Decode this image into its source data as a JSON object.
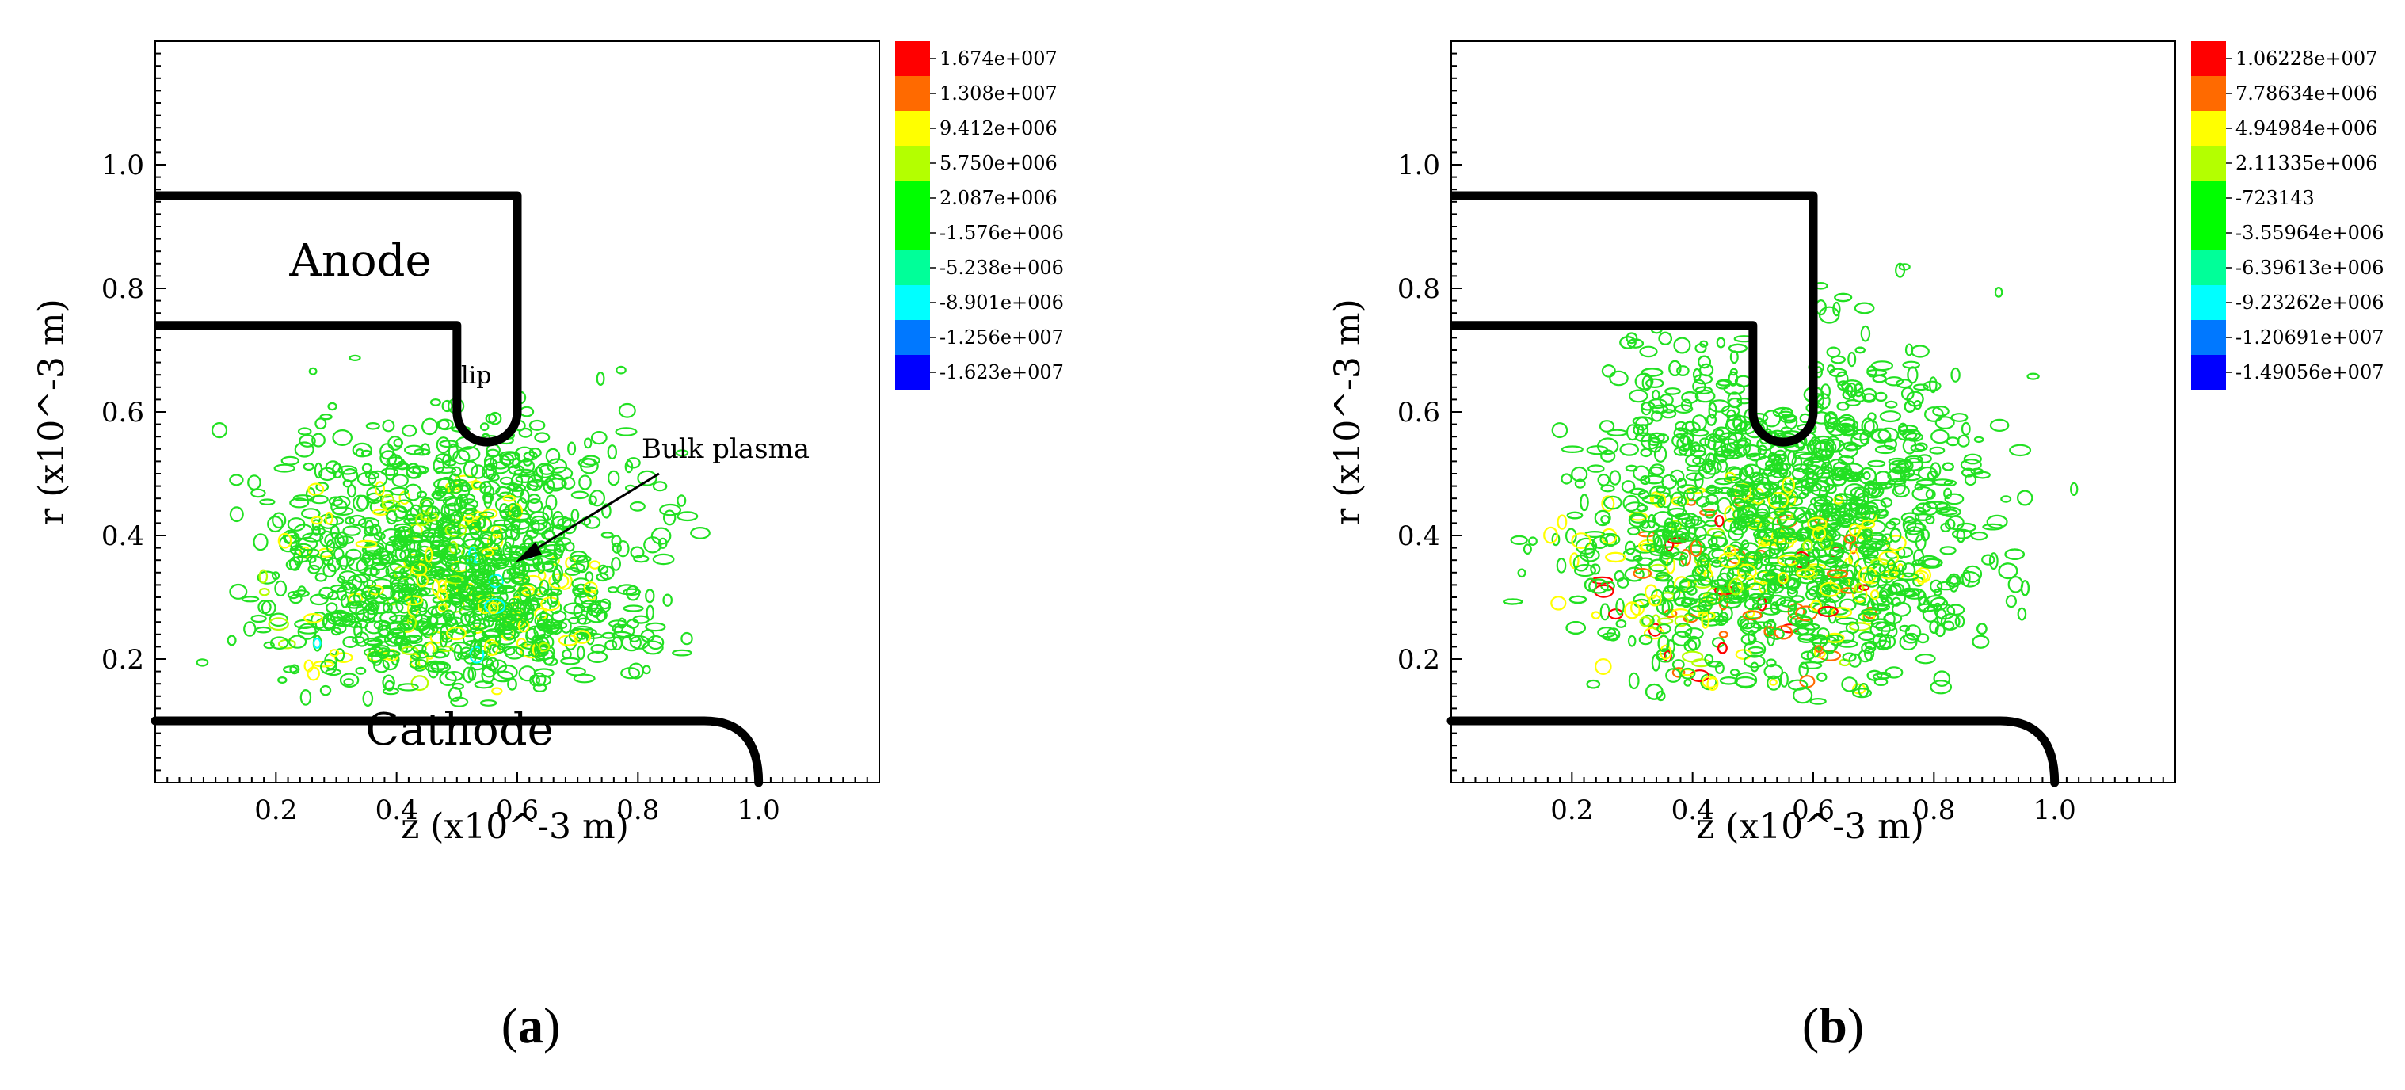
{
  "colors": {
    "frame": "#000000",
    "contour_ramp": [
      "#ff0000",
      "#ff6a00",
      "#ffff00",
      "#b4ff00",
      "#00ff00",
      "#00ff00",
      "#00ff99",
      "#00ffff",
      "#0078ff",
      "#0000ff"
    ]
  },
  "panels": [
    {
      "id": "a",
      "label_left": "(",
      "label_letter": "a",
      "label_right": ")",
      "annotations": {
        "anode": "Anode",
        "cathode": "Cathode",
        "lip": "lip",
        "bulk_plasma": "Bulk plasma"
      },
      "legend": [
        "1.674e+007",
        "1.308e+007",
        "9.412e+006",
        "5.750e+006",
        "2.087e+006",
        "-1.576e+006",
        "-5.238e+006",
        "-8.901e+006",
        "-1.256e+007",
        "-1.623e+007"
      ]
    },
    {
      "id": "b",
      "label_left": "(",
      "label_letter": "b",
      "label_right": ")",
      "annotations": {},
      "legend": [
        "1.06228e+007",
        "7.78634e+006",
        "4.94984e+006",
        "2.11335e+006",
        "-723143",
        "-3.55964e+006",
        "-6.39613e+006",
        "-9.23262e+006",
        "-1.20691e+007",
        "-1.49056e+007"
      ]
    }
  ],
  "chart_data": [
    {
      "type": "contour",
      "panel": "a",
      "xlabel": "z (x10^-3 m)",
      "ylabel": "r (x10^-3 m)",
      "xlim": [
        0,
        1.2
      ],
      "ylim": [
        0,
        1.2
      ],
      "xticks": [
        {
          "v": 0.2,
          "label": "0.2"
        },
        {
          "v": 0.4,
          "label": "0.4"
        },
        {
          "v": 0.6,
          "label": "0.6"
        },
        {
          "v": 0.8,
          "label": "0.8"
        },
        {
          "v": 1.0,
          "label": "1.0"
        }
      ],
      "yticks": [
        {
          "v": 0.2,
          "label": "0.2"
        },
        {
          "v": 0.4,
          "label": "0.4"
        },
        {
          "v": 0.6,
          "label": "0.6"
        },
        {
          "v": 0.8,
          "label": "0.8"
        },
        {
          "v": 1.0,
          "label": "1.0"
        }
      ],
      "levels": [
        16740000.0,
        13080000.0,
        9412000.0,
        5750000.0,
        2087000.0,
        -1576000.0,
        -5238000.0,
        -8901000.0,
        -12560000.0,
        -16230000.0
      ],
      "geometry": {
        "anode_top_r": 0.95,
        "anode_bottom_r": 0.74,
        "lip_z": [
          0.5,
          0.6
        ],
        "lip_tip_r": 0.6,
        "cathode_top_r": 0.1,
        "cathode_end_z": 1.0,
        "cathode_corner_radius": 0.09
      },
      "plasma_region": {
        "z_center": 0.42,
        "r_center": 0.3,
        "z_extent": [
          0.05,
          0.95
        ],
        "r_extent": [
          0.12,
          0.72
        ]
      },
      "grid": false,
      "legend_placement": "right"
    },
    {
      "type": "contour",
      "panel": "b",
      "xlabel": "z (x10^-3 m)",
      "ylabel": "r (x10^-3 m)",
      "xlim": [
        0,
        1.2
      ],
      "ylim": [
        0,
        1.2
      ],
      "xticks": [
        {
          "v": 0.2,
          "label": "0.2"
        },
        {
          "v": 0.4,
          "label": "0.4"
        },
        {
          "v": 0.6,
          "label": "0.6"
        },
        {
          "v": 0.8,
          "label": "0.8"
        },
        {
          "v": 1.0,
          "label": "1.0"
        }
      ],
      "yticks": [
        {
          "v": 0.2,
          "label": "0.2"
        },
        {
          "v": 0.4,
          "label": "0.4"
        },
        {
          "v": 0.6,
          "label": "0.6"
        },
        {
          "v": 0.8,
          "label": "0.8"
        },
        {
          "v": 1.0,
          "label": "1.0"
        }
      ],
      "levels": [
        10622800.0,
        7786340.0,
        4949840.0,
        2113350.0,
        -723143,
        -3559640.0,
        -6396130.0,
        -9232620.0,
        -12069100.0,
        -14905600.0
      ],
      "geometry": {
        "anode_top_r": 0.95,
        "anode_bottom_r": 0.74,
        "lip_z": [
          0.5,
          0.6
        ],
        "lip_tip_r": 0.6,
        "cathode_top_r": 0.1,
        "cathode_end_z": 1.0,
        "cathode_corner_radius": 0.09
      },
      "plasma_region": {
        "z_center": 0.45,
        "r_center": 0.3,
        "z_extent": [
          0.05,
          1.05
        ],
        "r_extent": [
          0.12,
          0.9
        ]
      },
      "grid": false,
      "legend_placement": "right"
    }
  ]
}
